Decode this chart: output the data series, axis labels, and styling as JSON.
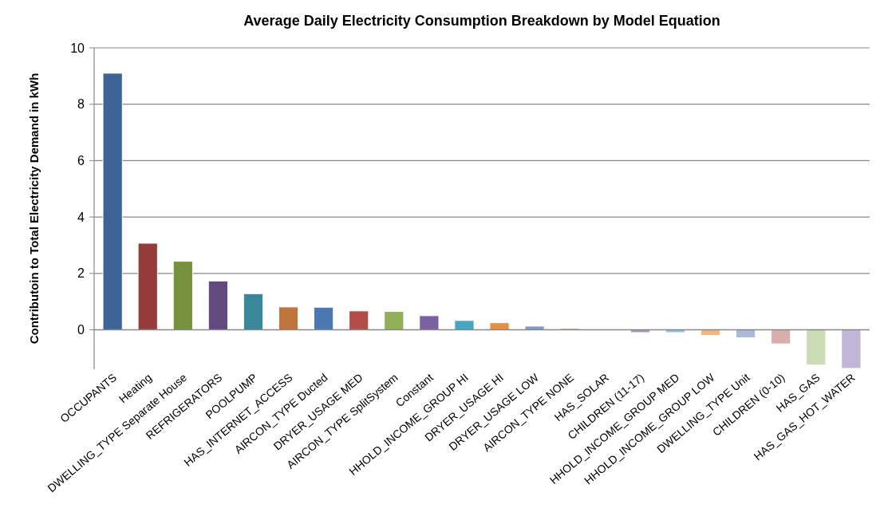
{
  "chart_data": {
    "type": "bar",
    "title": "Average Daily Electricity Consumption Breakdown by Model Equation",
    "ylabel": "Contributoin to Total Electricity Demand in kWh",
    "categories": [
      "OCCUPANTS",
      "Heating",
      "DWELLING_TYPE Separate House",
      "REFRIGERATORS",
      "POOLPUMP",
      "HAS_INTERNET_ACCESS",
      "AIRCON_TYPE Ducted",
      "DRYER_USAGE MED",
      "AIRCON_TYPE SplitSystem",
      "Constant",
      "HHOLD_INCOME_GROUP HI",
      "DRYER_USAGE HI",
      "DRYER_USAGE LOW",
      "AIRCON_TYPE NONE",
      "HAS_SOLAR",
      "CHILDREN (11-17)",
      "HHOLD_INCOME_GROUP MED",
      "HHOLD_INCOME_GROUP LOW",
      "DWELLING_TYPE Unit",
      "CHILDREN (0-10)",
      "HAS_GAS",
      "HAS_GAS_HOT_WATER"
    ],
    "values": [
      9.1,
      3.07,
      2.43,
      1.73,
      1.28,
      0.81,
      0.8,
      0.67,
      0.65,
      0.5,
      0.33,
      0.25,
      0.13,
      0.05,
      -0.02,
      -0.1,
      -0.1,
      -0.2,
      -0.28,
      -0.5,
      -1.25,
      -1.37
    ],
    "colors": [
      "#3c6497",
      "#953b39",
      "#77923c",
      "#624a7e",
      "#38879b",
      "#c0733a",
      "#4b78b4",
      "#b24d4a",
      "#93b058",
      "#7a61a0",
      "#45a6c1",
      "#e98d3e",
      "#7d9bcb",
      "#d9a0a0",
      "#e0e0e0",
      "#a898c0",
      "#8cc9dc",
      "#f7b47d",
      "#a9b9da",
      "#dbaeae",
      "#ccdbb4",
      "#c2b5d6"
    ],
    "ylim": [
      -1.4,
      10
    ],
    "yticks": [
      0,
      2,
      4,
      6,
      8,
      10
    ],
    "grid": "y"
  }
}
